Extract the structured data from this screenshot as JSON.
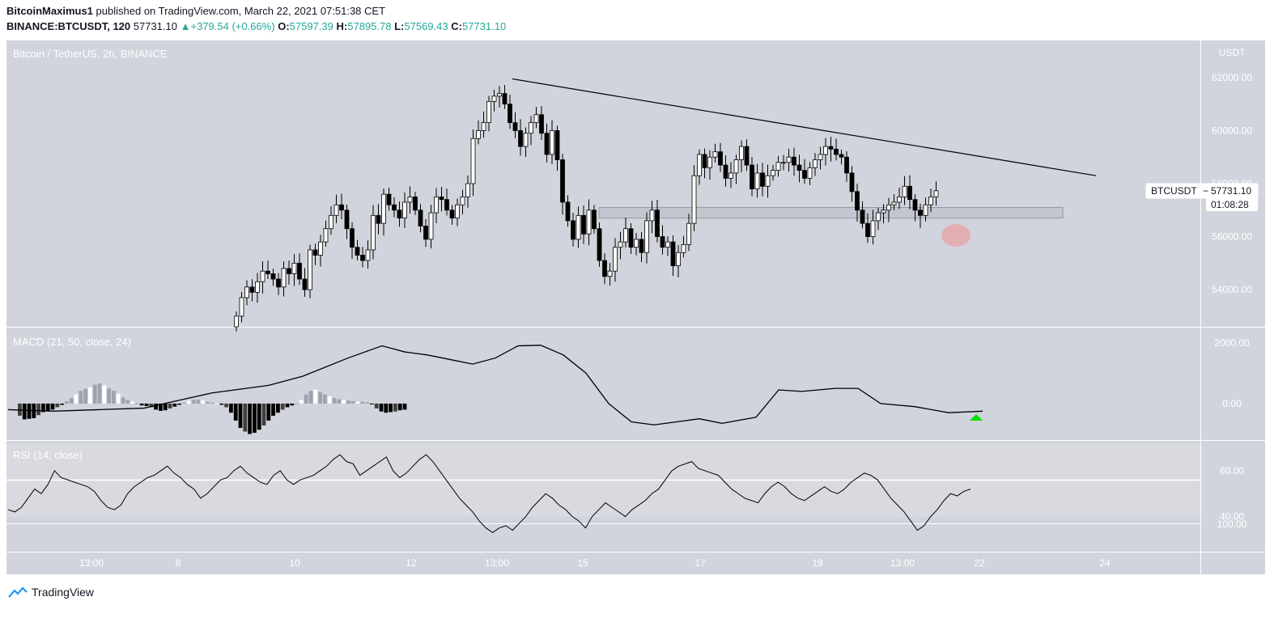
{
  "header": {
    "author": "BitcoinMaximus1",
    "published": "published on TradingView.com, March 22, 2021 07:51:38 CET",
    "symbol": "BINANCE:BTCUSDT, 120",
    "last": "57731.10",
    "change": "+379.54 (+0.66%)",
    "o_label": "O:",
    "o": "57597.39",
    "h_label": "H:",
    "h": "57895.78",
    "l_label": "L:",
    "l": "57569.43",
    "c_label": "C:",
    "c": "57731.10"
  },
  "footer": {
    "brand": "TradingView"
  },
  "colors": {
    "pane_bg": "#d1d4dc",
    "axis_bg": "#d1d4dc",
    "line": "#000000",
    "up_fill": "#ffffff",
    "down_fill": "#000000",
    "arrow": "#00e000",
    "circle": "#e8a0a0"
  },
  "chart_data": [
    {
      "type": "candlestick",
      "title": "Bitcoin / TetherUS, 2h, BINANCE",
      "currency": "USDT",
      "yticks": [
        54000,
        56000,
        58000,
        60000,
        62000
      ],
      "ytick_labels": [
        "54000.00",
        "56000.00",
        "58000.00",
        "60000.00",
        "62000.00"
      ],
      "ylim": [
        52600,
        63400
      ],
      "xticks": [
        "13:00",
        "8",
        "10",
        "12",
        "13:00",
        "15",
        "17",
        "19",
        "13:00",
        "22",
        "24"
      ],
      "last_price_label": "BTCUSDT",
      "last_price": "57731.10",
      "countdown": "01:08:28",
      "candle_closes": [
        53000,
        53700,
        54100,
        53900,
        54300,
        54700,
        54600,
        54400,
        54100,
        54800,
        54600,
        55000,
        54400,
        54000,
        55500,
        55300,
        55800,
        56300,
        56800,
        57200,
        57000,
        56300,
        55600,
        55300,
        55100,
        55500,
        56800,
        56500,
        57600,
        57200,
        57000,
        56700,
        57300,
        57500,
        57000,
        56400,
        55900,
        56900,
        57500,
        57400,
        57000,
        56700,
        57200,
        57500,
        58000,
        59700,
        60000,
        60300,
        61100,
        61300,
        61400,
        61000,
        60300,
        60000,
        59400,
        59900,
        60300,
        60600,
        59900,
        59100,
        60000,
        58900,
        57300,
        56600,
        55900,
        56800,
        56100,
        57000,
        56300,
        55100,
        54500,
        54700,
        55600,
        55800,
        56300,
        55600,
        55900,
        55400,
        56600,
        57000,
        56000,
        55600,
        55800,
        54900,
        55400,
        55700,
        56500,
        58300,
        59100,
        58600,
        59000,
        59200,
        58700,
        58200,
        58400,
        58900,
        59400,
        58700,
        57800,
        58400,
        57900,
        58300,
        58500,
        58800,
        58800,
        59000,
        58700,
        58500,
        58200,
        58600,
        58900,
        59100,
        59400,
        59300,
        59100,
        59000,
        58400,
        57700,
        57000,
        56500,
        56000,
        56600,
        56900,
        57000,
        57200,
        57300,
        57500,
        57900,
        57400,
        57000,
        56800,
        57200,
        57500,
        57731
      ],
      "trendline": {
        "from": {
          "x": "13 Mar 13:00",
          "y": 61950
        },
        "to": {
          "x": "23 Mar 16:00",
          "y": 58300
        }
      },
      "support_zone": [
        56700,
        57100
      ]
    },
    {
      "type": "line+histogram",
      "title": "MACD (21, 50, close, 24)",
      "yticks": [
        0,
        2000
      ],
      "ytick_labels": [
        "0.00",
        "2000.00"
      ],
      "ylim": [
        -1200,
        2500
      ],
      "macd_points": [
        [
          0,
          -200
        ],
        [
          8,
          -250
        ],
        [
          16,
          -200
        ],
        [
          24,
          -150
        ],
        [
          30,
          100
        ],
        [
          36,
          350
        ],
        [
          40,
          450
        ],
        [
          46,
          600
        ],
        [
          52,
          900
        ],
        [
          56,
          1200
        ],
        [
          60,
          1500
        ],
        [
          66,
          1900
        ],
        [
          70,
          1700
        ],
        [
          74,
          1600
        ],
        [
          78,
          1450
        ],
        [
          82,
          1300
        ],
        [
          86,
          1500
        ],
        [
          90,
          1900
        ],
        [
          94,
          1920
        ],
        [
          98,
          1600
        ],
        [
          102,
          1000
        ],
        [
          106,
          0
        ],
        [
          110,
          -600
        ],
        [
          114,
          -700
        ],
        [
          118,
          -600
        ],
        [
          122,
          -500
        ],
        [
          126,
          -650
        ],
        [
          132,
          -450
        ],
        [
          136,
          450
        ],
        [
          140,
          400
        ],
        [
          146,
          500
        ],
        [
          150,
          500
        ],
        [
          154,
          0
        ],
        [
          160,
          -100
        ],
        [
          166,
          -300
        ],
        [
          172,
          -250
        ]
      ],
      "histogram": [
        -400,
        -520,
        -500,
        -480,
        -380,
        -280,
        -240,
        -200,
        -120,
        -40,
        80,
        180,
        300,
        420,
        480,
        540,
        620,
        660,
        600,
        500,
        420,
        320,
        200,
        120,
        60,
        10,
        -60,
        -80,
        -120,
        -200,
        -240,
        -220,
        -160,
        -100,
        -40,
        30,
        90,
        120,
        130,
        100,
        60,
        30,
        0,
        -40,
        -120,
        -300,
        -560,
        -800,
        -920,
        -1000,
        -960,
        -860,
        -720,
        -560,
        -400,
        -300,
        -200,
        -120,
        -60,
        0,
        120,
        300,
        420,
        460,
        380,
        300,
        240,
        180,
        140,
        120,
        100,
        80,
        60,
        60,
        40,
        -20,
        -160,
        -260,
        -300,
        -280,
        -260,
        -220,
        -200
      ]
    },
    {
      "type": "line",
      "title": "RSI (14, close)",
      "yticks": [
        40,
        60
      ],
      "ytick_labels": [
        "40.00",
        "60.00"
      ],
      "extra_label": "100.00",
      "ylim": [
        25,
        72
      ],
      "values": [
        43,
        42,
        44,
        48,
        52,
        50,
        54,
        60,
        57,
        56,
        55,
        54,
        53,
        51,
        47,
        44,
        43,
        45,
        50,
        53,
        55,
        57,
        58,
        60,
        62,
        59,
        57,
        54,
        52,
        48,
        50,
        53,
        56,
        57,
        60,
        62,
        59,
        57,
        55,
        54,
        58,
        60,
        56,
        54,
        56,
        57,
        58,
        60,
        62,
        65,
        67,
        64,
        63,
        58,
        60,
        62,
        64,
        66,
        60,
        57,
        59,
        62,
        65,
        67,
        64,
        60,
        56,
        52,
        48,
        45,
        42,
        38,
        35,
        33,
        35,
        36,
        34,
        37,
        40,
        44,
        47,
        50,
        48,
        45,
        43,
        40,
        38,
        35,
        40,
        43,
        46,
        44,
        42,
        40,
        43,
        45,
        47,
        50,
        52,
        56,
        60,
        62,
        63,
        64,
        61,
        60,
        59,
        58,
        55,
        52,
        50,
        48,
        47,
        46,
        50,
        53,
        55,
        53,
        50,
        48,
        47,
        49,
        51,
        53,
        51,
        50,
        52,
        55,
        57,
        59,
        58,
        56,
        52,
        48,
        45,
        42,
        38,
        34,
        36,
        40,
        43,
        47,
        50,
        49,
        51,
        52
      ]
    }
  ]
}
